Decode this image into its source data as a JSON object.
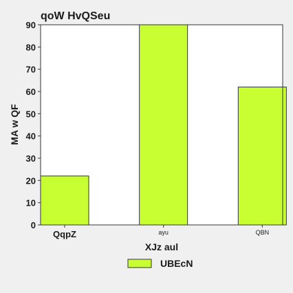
{
  "chart_data": {
    "type": "bar",
    "title": "qoW HvQSeu",
    "xlabel": "XJz aul",
    "ylabel": "MA  w QF",
    "categories": [
      "QqpZ",
      "ayu",
      "QBN"
    ],
    "series": [
      {
        "name": "UBEcN",
        "values": [
          22,
          90,
          62
        ],
        "color": "#c8ff32"
      }
    ],
    "ylim": [
      0,
      90
    ],
    "yticks": [
      0,
      10,
      20,
      30,
      40,
      50,
      60,
      70,
      80,
      90
    ],
    "grid": false,
    "legend": "bottom-center"
  }
}
